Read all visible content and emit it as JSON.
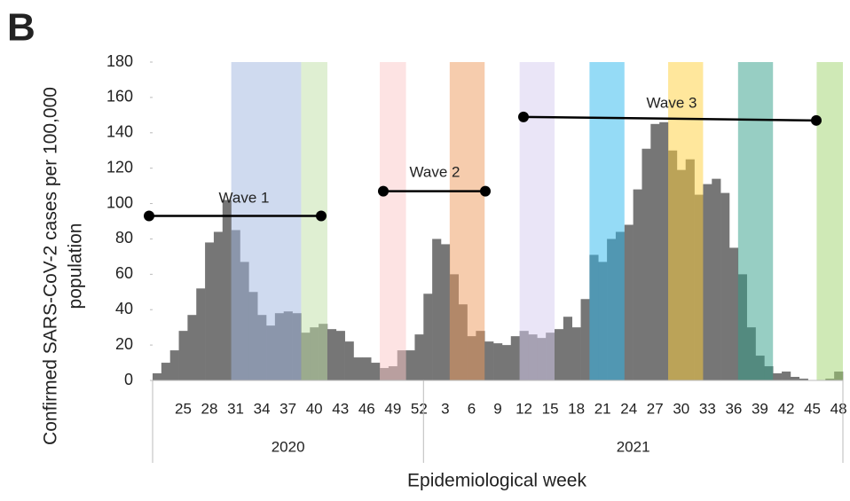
{
  "chart_data": {
    "type": "bar",
    "panel": "B",
    "ylabel": [
      "Confirmed SARS-CoV-2 cases per 100,000",
      "population"
    ],
    "xlabel": "Epidemiological week",
    "groups": [
      {
        "name": "2020",
        "categories": [
          null,
          null,
          null,
          "25",
          null,
          null,
          "28",
          null,
          null,
          "31",
          null,
          null,
          "34",
          null,
          null,
          "37",
          null,
          null,
          "40",
          null,
          null,
          "43",
          null,
          null,
          "46",
          null,
          null,
          "49",
          null,
          null,
          "52"
        ]
      },
      {
        "name": "2021",
        "categories": [
          null,
          null,
          "3",
          null,
          null,
          "6",
          null,
          null,
          "9",
          null,
          null,
          "12",
          null,
          null,
          "15",
          null,
          null,
          "18",
          null,
          null,
          "21",
          null,
          null,
          "24",
          null,
          null,
          "27",
          null,
          null,
          "30",
          null,
          null,
          "33",
          null,
          null,
          "36",
          null,
          null,
          "39",
          null,
          null,
          "42",
          null,
          null,
          "45",
          null,
          null,
          "48"
        ]
      }
    ],
    "values": [
      4,
      10,
      17,
      28,
      37,
      52,
      78,
      84,
      102,
      85,
      67,
      50,
      37,
      31,
      38,
      39,
      38,
      27,
      30,
      32,
      29,
      28,
      22,
      13,
      13,
      10,
      7,
      8,
      17,
      17,
      26,
      49,
      80,
      77,
      60,
      43,
      25,
      28,
      22,
      21,
      20,
      25,
      28,
      26,
      24,
      27,
      29,
      36,
      30,
      46,
      71,
      67,
      80,
      84,
      88,
      108,
      131,
      145,
      146,
      130,
      119,
      125,
      105,
      111,
      114,
      106,
      75,
      60,
      30,
      14,
      8,
      4,
      5,
      2,
      1,
      0,
      0,
      1,
      5
    ],
    "color": "#767676",
    "ylim": [
      0,
      180
    ],
    "yticks": [
      0,
      20,
      40,
      60,
      80,
      100,
      120,
      140,
      160,
      180
    ],
    "waves": [
      {
        "label": "Wave 1",
        "y_start": 93,
        "y_end": 93
      },
      {
        "label": "Wave 2",
        "y_start": 107,
        "y_end": 107
      },
      {
        "label": "Wave 3",
        "y_start": 149,
        "y_end": 147
      }
    ]
  }
}
